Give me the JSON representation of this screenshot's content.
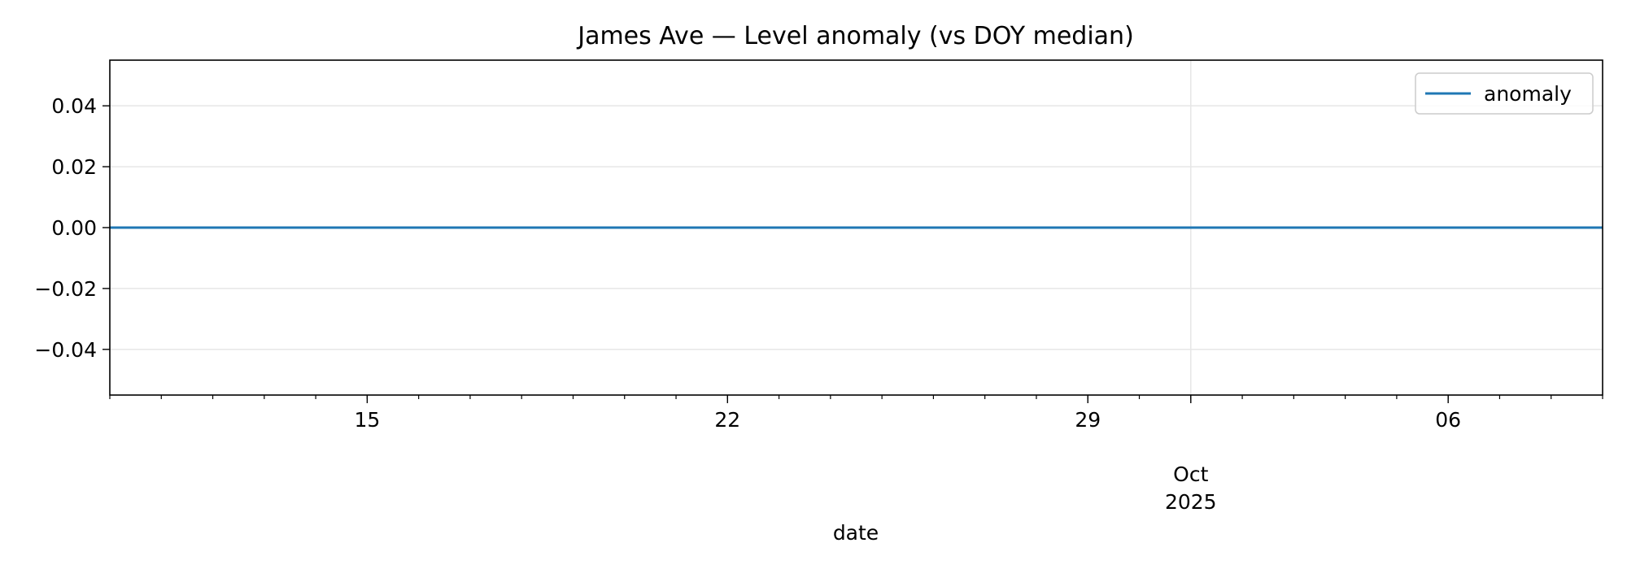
{
  "chart_data": {
    "type": "line",
    "title": "James Ave — Level anomaly (vs DOY median)",
    "xlabel": "date",
    "ylabel": "",
    "x_range": [
      "2025-09-10",
      "2025-10-09"
    ],
    "ylim": [
      -0.055,
      0.055
    ],
    "yticks": [
      {
        "value": 0.04,
        "label": "0.04"
      },
      {
        "value": 0.02,
        "label": "0.02"
      },
      {
        "value": 0.0,
        "label": "0.00"
      },
      {
        "value": -0.02,
        "label": "−0.02"
      },
      {
        "value": -0.04,
        "label": "−0.04"
      }
    ],
    "xticks_major": [
      {
        "date": "2025-09-15",
        "label": "15"
      },
      {
        "date": "2025-09-22",
        "label": "22"
      },
      {
        "date": "2025-09-29",
        "label": "29"
      },
      {
        "date": "2025-10-01",
        "label": "Oct",
        "sublabel": "2025"
      },
      {
        "date": "2025-10-06",
        "label": "06"
      }
    ],
    "grid": true,
    "legend_position": "top-right",
    "series": [
      {
        "name": "anomaly",
        "color": "#1f77b4",
        "x": [
          "2025-09-10",
          "2025-10-09"
        ],
        "values": [
          0.0,
          0.0
        ]
      }
    ]
  }
}
